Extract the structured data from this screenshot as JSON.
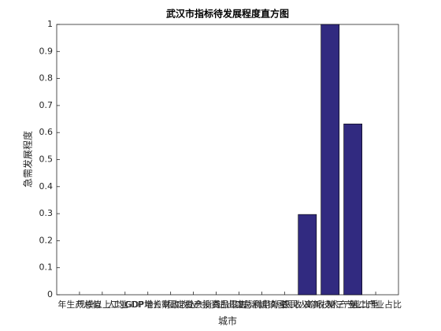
{
  "chart_data": {
    "type": "bar",
    "title": "武汉市指标待发展程度直方图",
    "xlabel": "城市",
    "ylabel": "急需发展程度",
    "categories": [
      "年生产总值",
      "规模以上工业",
      "人均GDP",
      "GDP增长率",
      "地方财政收入",
      "固定资产投资",
      "社会消费品零售",
      "进出口总额",
      "实际利用外资",
      "城镇居民收入",
      "农民人均收入",
      "高新技术产业",
      "第三产业比重",
      "第二产业占比"
    ],
    "values": [
      0,
      0,
      0,
      0,
      0,
      0,
      0,
      0,
      0,
      0,
      0.297,
      1,
      0.632,
      0
    ],
    "color": "#312a80",
    "xlim": [
      0,
      15
    ],
    "ylim": [
      0,
      1
    ],
    "yticks": [
      0,
      0.1,
      0.2,
      0.3,
      0.4,
      0.5,
      0.6,
      0.7,
      0.8,
      0.9,
      1
    ]
  }
}
